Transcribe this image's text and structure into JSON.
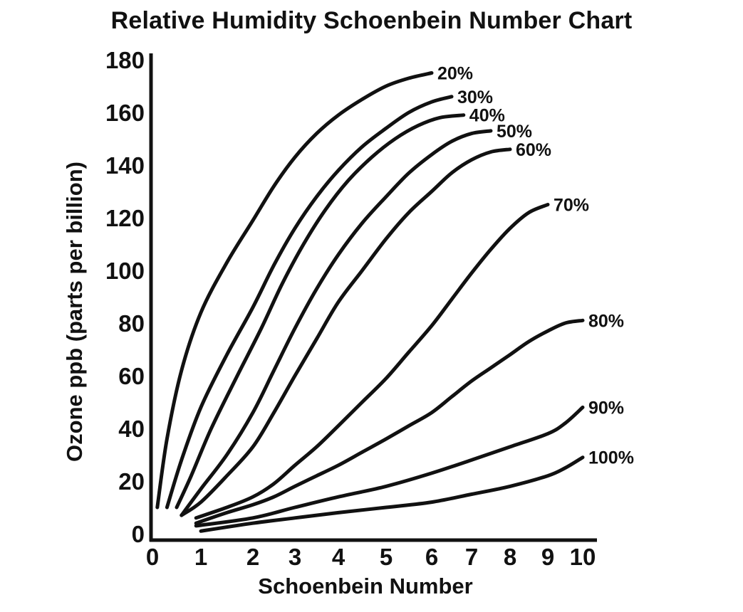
{
  "chart_data": {
    "type": "line",
    "title": "Relative Humidity Schoenbein Number Chart",
    "xlabel": "Schoenbein Number",
    "ylabel": "Ozone ppb (parts per billion)",
    "xlim": [
      0,
      10
    ],
    "ylim": [
      0,
      180
    ],
    "x_ticks": [
      "0",
      "1",
      "2",
      "3",
      "4",
      "5",
      "6",
      "7",
      "8",
      "9",
      "10"
    ],
    "y_ticks": [
      "0",
      "20",
      "40",
      "60",
      "80",
      "100",
      "120",
      "140",
      "160",
      "180"
    ],
    "grid": false,
    "series": [
      {
        "name": "20%",
        "label": "20%",
        "x": [
          0.1,
          0.3,
          0.6,
          1.0,
          1.5,
          2.0,
          2.5,
          3.0,
          3.5,
          4.0,
          4.5,
          5.0,
          5.5,
          6.0
        ],
        "y": [
          10,
          36,
          62,
          84,
          103,
          119,
          132,
          143,
          152,
          159,
          165,
          170,
          173,
          175
        ]
      },
      {
        "name": "30%",
        "label": "30%",
        "x": [
          0.3,
          0.6,
          1.0,
          1.5,
          2.0,
          2.5,
          3.0,
          3.5,
          4.0,
          4.5,
          5.0,
          5.5,
          6.0,
          6.5
        ],
        "y": [
          10,
          28,
          48,
          68,
          86,
          102,
          116,
          128,
          138,
          147,
          154,
          160,
          164,
          166
        ]
      },
      {
        "name": "40%",
        "label": "40%",
        "x": [
          0.5,
          0.8,
          1.2,
          1.7,
          2.2,
          2.7,
          3.2,
          3.7,
          4.2,
          4.7,
          5.2,
          5.7,
          6.2,
          6.8
        ],
        "y": [
          10,
          22,
          40,
          60,
          78,
          95,
          110,
          123,
          134,
          143,
          150,
          155,
          158,
          159
        ]
      },
      {
        "name": "50%",
        "label": "50%",
        "x": [
          0.6,
          1.0,
          1.5,
          2.0,
          2.5,
          3.0,
          3.5,
          4.0,
          4.5,
          5.0,
          5.5,
          6.0,
          6.5,
          7.0,
          7.5
        ],
        "y": [
          7,
          17,
          30,
          46,
          62,
          78,
          93,
          106,
          118,
          128,
          137,
          144,
          149,
          152,
          153
        ]
      },
      {
        "name": "60%",
        "label": "60%",
        "x": [
          0.6,
          1.0,
          1.5,
          2.0,
          2.5,
          3.0,
          3.5,
          4.0,
          4.5,
          5.0,
          5.5,
          6.0,
          6.5,
          7.0,
          7.5,
          8.0
        ],
        "y": [
          7,
          12,
          22,
          33,
          46,
          60,
          74,
          88,
          100,
          112,
          122,
          130,
          137,
          142,
          145,
          146
        ]
      },
      {
        "name": "70%",
        "label": "70%",
        "x": [
          0.9,
          1.5,
          2.0,
          2.5,
          3.0,
          3.5,
          4.0,
          4.5,
          5.0,
          5.5,
          6.0,
          6.5,
          7.0,
          7.5,
          8.0,
          8.5,
          9.0
        ],
        "y": [
          6,
          10,
          14,
          19,
          26,
          33,
          41,
          50,
          59,
          69,
          79,
          89,
          99,
          108,
          116,
          122,
          125
        ]
      },
      {
        "name": "80%",
        "label": "80%",
        "x": [
          0.9,
          1.5,
          2.0,
          2.5,
          3.0,
          3.5,
          4.0,
          4.5,
          5.0,
          5.5,
          6.0,
          6.5,
          7.0,
          7.5,
          8.0,
          8.5,
          9.0,
          9.5,
          10.0
        ],
        "y": [
          4,
          8,
          11,
          14,
          18,
          22,
          26,
          31,
          36,
          41,
          46,
          52,
          58,
          63,
          68,
          73,
          77,
          80,
          81
        ]
      },
      {
        "name": "90%",
        "label": "90%",
        "x": [
          0.9,
          2.0,
          3.0,
          4.0,
          5.0,
          6.0,
          7.0,
          8.0,
          9.0,
          9.5,
          10.0
        ],
        "y": [
          3,
          6,
          10,
          14,
          18,
          23,
          28,
          33,
          38,
          42,
          48
        ]
      },
      {
        "name": "100%",
        "label": "100%",
        "x": [
          1.0,
          2.0,
          3.0,
          4.0,
          5.0,
          6.0,
          7.0,
          8.0,
          9.0,
          9.5,
          10.0
        ],
        "y": [
          1,
          4,
          6,
          8,
          10,
          12,
          15,
          18,
          22,
          25,
          29
        ]
      }
    ]
  }
}
